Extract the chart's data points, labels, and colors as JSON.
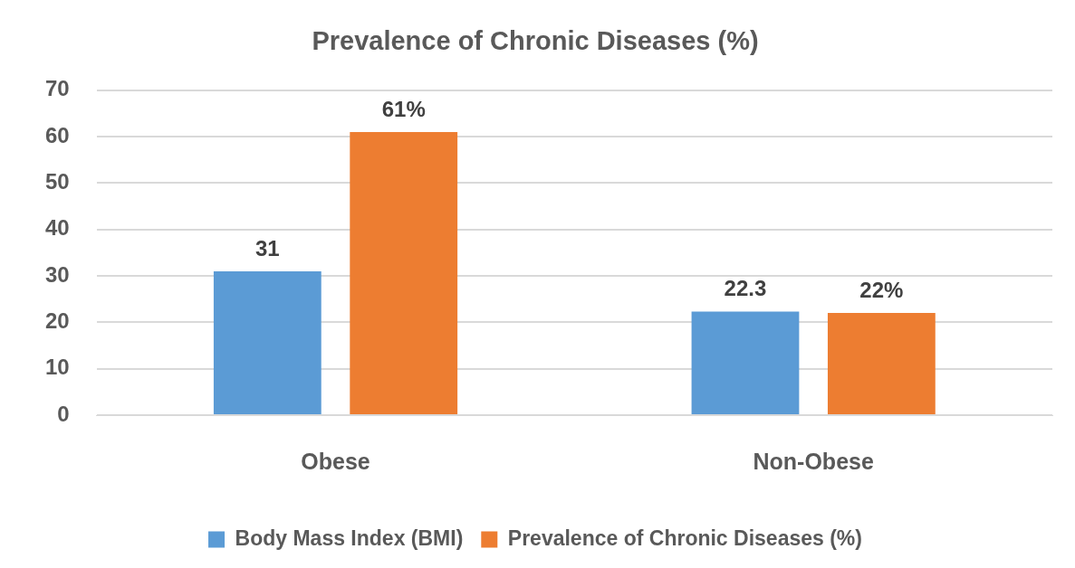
{
  "chart_data": {
    "type": "bar",
    "title": "Prevalence of Chronic Diseases (%)",
    "categories": [
      "Obese",
      "Non-Obese"
    ],
    "series": [
      {
        "name": "Body Mass Index (BMI)",
        "color": "#5b9bd5",
        "values": [
          31,
          22.3
        ],
        "value_labels": [
          "31",
          "22.3"
        ]
      },
      {
        "name": "Prevalence of Chronic Diseases (%)",
        "color": "#ed7d31",
        "values": [
          61,
          22
        ],
        "value_labels": [
          "61%",
          "22%"
        ]
      }
    ],
    "ylim": [
      0,
      70
    ],
    "yticks": [
      0,
      10,
      20,
      30,
      40,
      50,
      60,
      70
    ],
    "grid": "y",
    "legend": "bottom"
  }
}
